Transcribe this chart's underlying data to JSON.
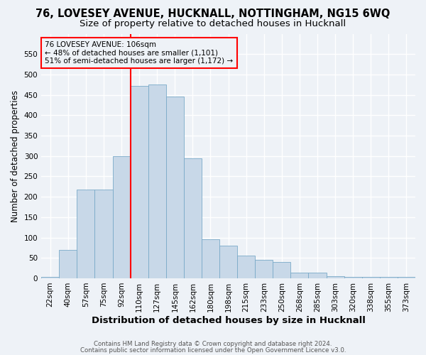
{
  "title": "76, LOVESEY AVENUE, HUCKNALL, NOTTINGHAM, NG15 6WQ",
  "subtitle": "Size of property relative to detached houses in Hucknall",
  "xlabel": "Distribution of detached houses by size in Hucknall",
  "ylabel": "Number of detached properties",
  "categories": [
    "22sqm",
    "40sqm",
    "57sqm",
    "75sqm",
    "92sqm",
    "110sqm",
    "127sqm",
    "145sqm",
    "162sqm",
    "180sqm",
    "198sqm",
    "215sqm",
    "233sqm",
    "250sqm",
    "268sqm",
    "285sqm",
    "303sqm",
    "320sqm",
    "338sqm",
    "355sqm",
    "373sqm"
  ],
  "values": [
    3,
    70,
    218,
    218,
    300,
    472,
    475,
    445,
    295,
    95,
    80,
    55,
    45,
    40,
    13,
    13,
    5,
    3,
    3,
    3,
    3
  ],
  "bar_color": "#c8d8e8",
  "bar_edge_color": "#7aaac8",
  "red_line_index": 5,
  "annotation_title": "76 LOVESEY AVENUE: 106sqm",
  "annotation_line1": "← 48% of detached houses are smaller (1,101)",
  "annotation_line2": "51% of semi-detached houses are larger (1,172) →",
  "ylim": [
    0,
    600
  ],
  "yticks": [
    0,
    50,
    100,
    150,
    200,
    250,
    300,
    350,
    400,
    450,
    500,
    550
  ],
  "footnote1": "Contains HM Land Registry data © Crown copyright and database right 2024.",
  "footnote2": "Contains public sector information licensed under the Open Government Licence v3.0.",
  "bg_color": "#eef2f7",
  "grid_color": "#ffffff",
  "title_fontsize": 10.5,
  "subtitle_fontsize": 9.5,
  "tick_fontsize": 7.5,
  "ylabel_fontsize": 8.5,
  "xlabel_fontsize": 9.5
}
